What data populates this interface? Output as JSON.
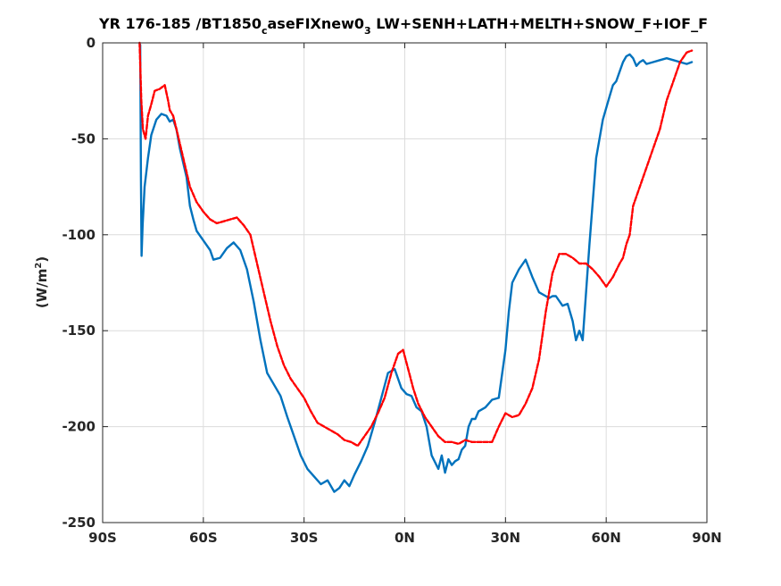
{
  "chart_data": {
    "type": "line",
    "title": {
      "prefix": "YR 176-185 /BT1850",
      "sub1": "c",
      "mid": "aseFIXnew0",
      "sub2": "3",
      "suffix": " LW+SENH+LATH+MELTH+SNOW_F+IOF_F"
    },
    "ylabel": {
      "main": "(W/m",
      "sup": "2",
      "close": ")"
    },
    "xlim": [
      -90,
      90
    ],
    "ylim": [
      -250,
      0
    ],
    "xticks": [
      -90,
      -60,
      -30,
      0,
      30,
      60,
      90
    ],
    "xtick_labels": [
      "90S",
      "60S",
      "30S",
      "0N",
      "30N",
      "60N",
      "90N"
    ],
    "yticks": [
      0,
      -50,
      -100,
      -150,
      -200,
      -250
    ],
    "ytick_labels": [
      "0",
      "-50",
      "-100",
      "-150",
      "-200",
      "-250"
    ],
    "grid": true,
    "series": [
      {
        "color": "#0072bd",
        "style": "solid",
        "x": [
          -78.8,
          -78.6,
          -78.4,
          -78.1,
          -77.5,
          -76.5,
          -75.5,
          -74,
          -72.5,
          -71,
          -70,
          -69,
          -68,
          -67,
          -65,
          -64,
          -63,
          -62,
          -60,
          -58,
          -57,
          -55,
          -53,
          -51,
          -49,
          -47,
          -45,
          -43,
          -41,
          -39,
          -37,
          -35,
          -33,
          -31,
          -29,
          -27,
          -25,
          -23,
          -21,
          -19.5,
          -18,
          -16.5,
          -15,
          -13,
          -11,
          -9,
          -7,
          -5,
          -3,
          -1,
          0.5,
          2,
          3.5,
          5,
          6.5,
          8,
          10,
          11,
          12,
          13,
          14,
          15,
          16,
          17,
          18,
          19,
          20,
          21,
          22,
          24,
          26,
          28,
          30,
          31,
          32,
          34,
          36,
          38,
          40,
          42,
          43,
          44,
          45,
          47,
          48.5,
          50,
          51,
          52,
          53,
          55,
          57,
          59,
          61,
          62,
          63,
          64,
          65,
          66,
          67,
          68,
          69,
          70,
          71,
          72,
          74,
          76,
          78,
          80,
          82,
          84,
          85.5
        ],
        "y": [
          -1,
          -70,
          -111,
          -95,
          -75,
          -60,
          -48,
          -40,
          -37,
          -38,
          -41,
          -40,
          -45,
          -55,
          -70,
          -85,
          -92,
          -98,
          -103,
          -108,
          -113,
          -112,
          -107,
          -104,
          -108,
          -118,
          -135,
          -155,
          -172,
          -178,
          -184,
          -195,
          -205,
          -215,
          -222,
          -226,
          -230,
          -228,
          -234,
          -232,
          -228,
          -231,
          -225,
          -218,
          -210,
          -198,
          -185,
          -172,
          -170,
          -180,
          -183,
          -184,
          -190,
          -192,
          -200,
          -215,
          -222,
          -215,
          -224,
          -217,
          -220,
          -218,
          -217,
          -212,
          -210,
          -200,
          -196,
          -196,
          -192,
          -190,
          -186,
          -185,
          -160,
          -140,
          -125,
          -118,
          -113,
          -122,
          -130,
          -132,
          -133,
          -132,
          -132,
          -137,
          -136,
          -145,
          -155,
          -150,
          -155,
          -105,
          -60,
          -40,
          -28,
          -22,
          -20,
          -15,
          -10,
          -7,
          -6,
          -8,
          -12,
          -10,
          -9,
          -11,
          -10,
          -9,
          -8,
          -9,
          -10,
          -11,
          -10
        ]
      },
      {
        "color": "#ff0000",
        "style": "dashed",
        "x": [
          -79,
          -78.5,
          -78,
          -77.2,
          -76.5,
          -75.5,
          -74.5,
          -73,
          -71.5,
          -70.5,
          -70,
          -69,
          -68,
          -66,
          -64,
          -62,
          -60,
          -58,
          -56,
          -54,
          -52,
          -50,
          -48,
          -46,
          -44,
          -42,
          -40,
          -38,
          -36,
          -34,
          -32,
          -30,
          -28,
          -26,
          -24,
          -22,
          -20,
          -18,
          -16,
          -14,
          -12,
          -10,
          -8,
          -6,
          -4,
          -2,
          -0.5,
          1,
          2.5,
          4,
          6,
          8,
          10,
          12,
          14,
          16,
          18,
          20,
          22,
          24,
          26,
          28,
          30,
          32,
          34,
          36,
          38,
          40,
          42,
          44,
          46,
          48,
          50,
          52,
          54,
          56,
          58,
          60,
          62,
          64,
          65,
          66,
          67,
          68,
          70,
          72,
          74,
          76,
          78,
          80,
          82,
          84,
          85.5
        ],
        "y": [
          0,
          -30,
          -45,
          -50,
          -38,
          -32,
          -25,
          -24,
          -22,
          -30,
          -35,
          -38,
          -45,
          -60,
          -75,
          -83,
          -88,
          -92,
          -94,
          -93,
          -92,
          -91,
          -95,
          -100,
          -115,
          -130,
          -145,
          -158,
          -168,
          -175,
          -180,
          -185,
          -192,
          -198,
          -200,
          -202,
          -204,
          -207,
          -208,
          -210,
          -205,
          -200,
          -193,
          -185,
          -172,
          -162,
          -160,
          -170,
          -180,
          -188,
          -195,
          -200,
          -205,
          -208,
          -208,
          -209,
          -207,
          -208,
          -208,
          -208,
          -208,
          -200,
          -193,
          -195,
          -194,
          -188,
          -180,
          -165,
          -140,
          -120,
          -110,
          -110,
          -112,
          -115,
          -115,
          -118,
          -122,
          -127,
          -122,
          -115,
          -112,
          -105,
          -100,
          -85,
          -75,
          -65,
          -55,
          -45,
          -30,
          -20,
          -10,
          -5,
          -4
        ]
      }
    ]
  }
}
